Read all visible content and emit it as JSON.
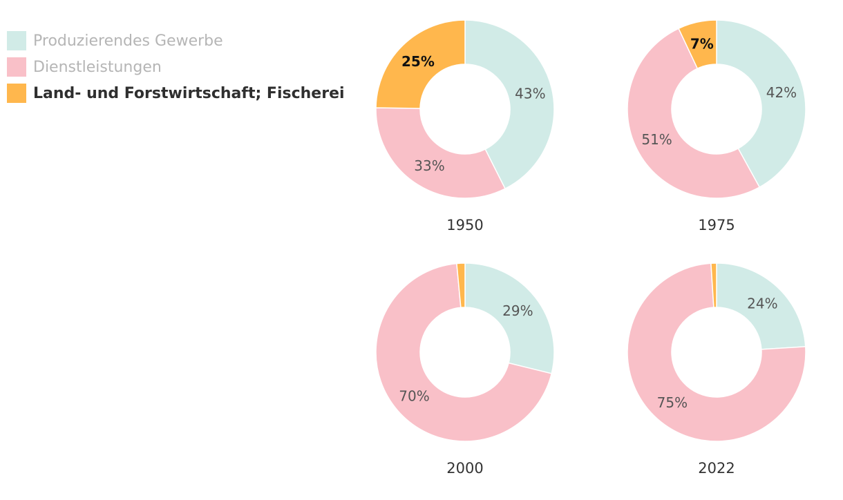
{
  "legend": {
    "items": [
      {
        "label": "Produzierendes Gewerbe",
        "color": "#d1ebe7",
        "active": false
      },
      {
        "label": "Dienstleistungen",
        "color": "#f9c0c8",
        "active": false
      },
      {
        "label": "Land- und Forstwirtschaft; Fischerei",
        "color": "#ffb74d",
        "active": true
      }
    ]
  },
  "chart_data": {
    "type": "pie",
    "variant": "donut",
    "categories": [
      "Produzierendes Gewerbe",
      "Dienstleistungen",
      "Land- und Forstwirtschaft; Fischerei"
    ],
    "colors": [
      "#d1ebe7",
      "#f9c0c8",
      "#ffb74d"
    ],
    "highlighted_category": "Land- und Forstwirtschaft; Fischerei",
    "legend_position": "top-left",
    "charts": [
      {
        "year": "1950",
        "values": [
          43,
          33,
          25
        ],
        "labels": [
          "43%",
          "33%",
          "25%"
        ]
      },
      {
        "year": "1975",
        "values": [
          42,
          51,
          7
        ],
        "labels": [
          "42%",
          "51%",
          "7%"
        ]
      },
      {
        "year": "2000",
        "values": [
          29,
          70,
          1.5
        ],
        "labels": [
          "29%",
          "70%",
          ""
        ]
      },
      {
        "year": "2022",
        "values": [
          24,
          75,
          1
        ],
        "labels": [
          "24%",
          "75%",
          ""
        ]
      }
    ]
  }
}
